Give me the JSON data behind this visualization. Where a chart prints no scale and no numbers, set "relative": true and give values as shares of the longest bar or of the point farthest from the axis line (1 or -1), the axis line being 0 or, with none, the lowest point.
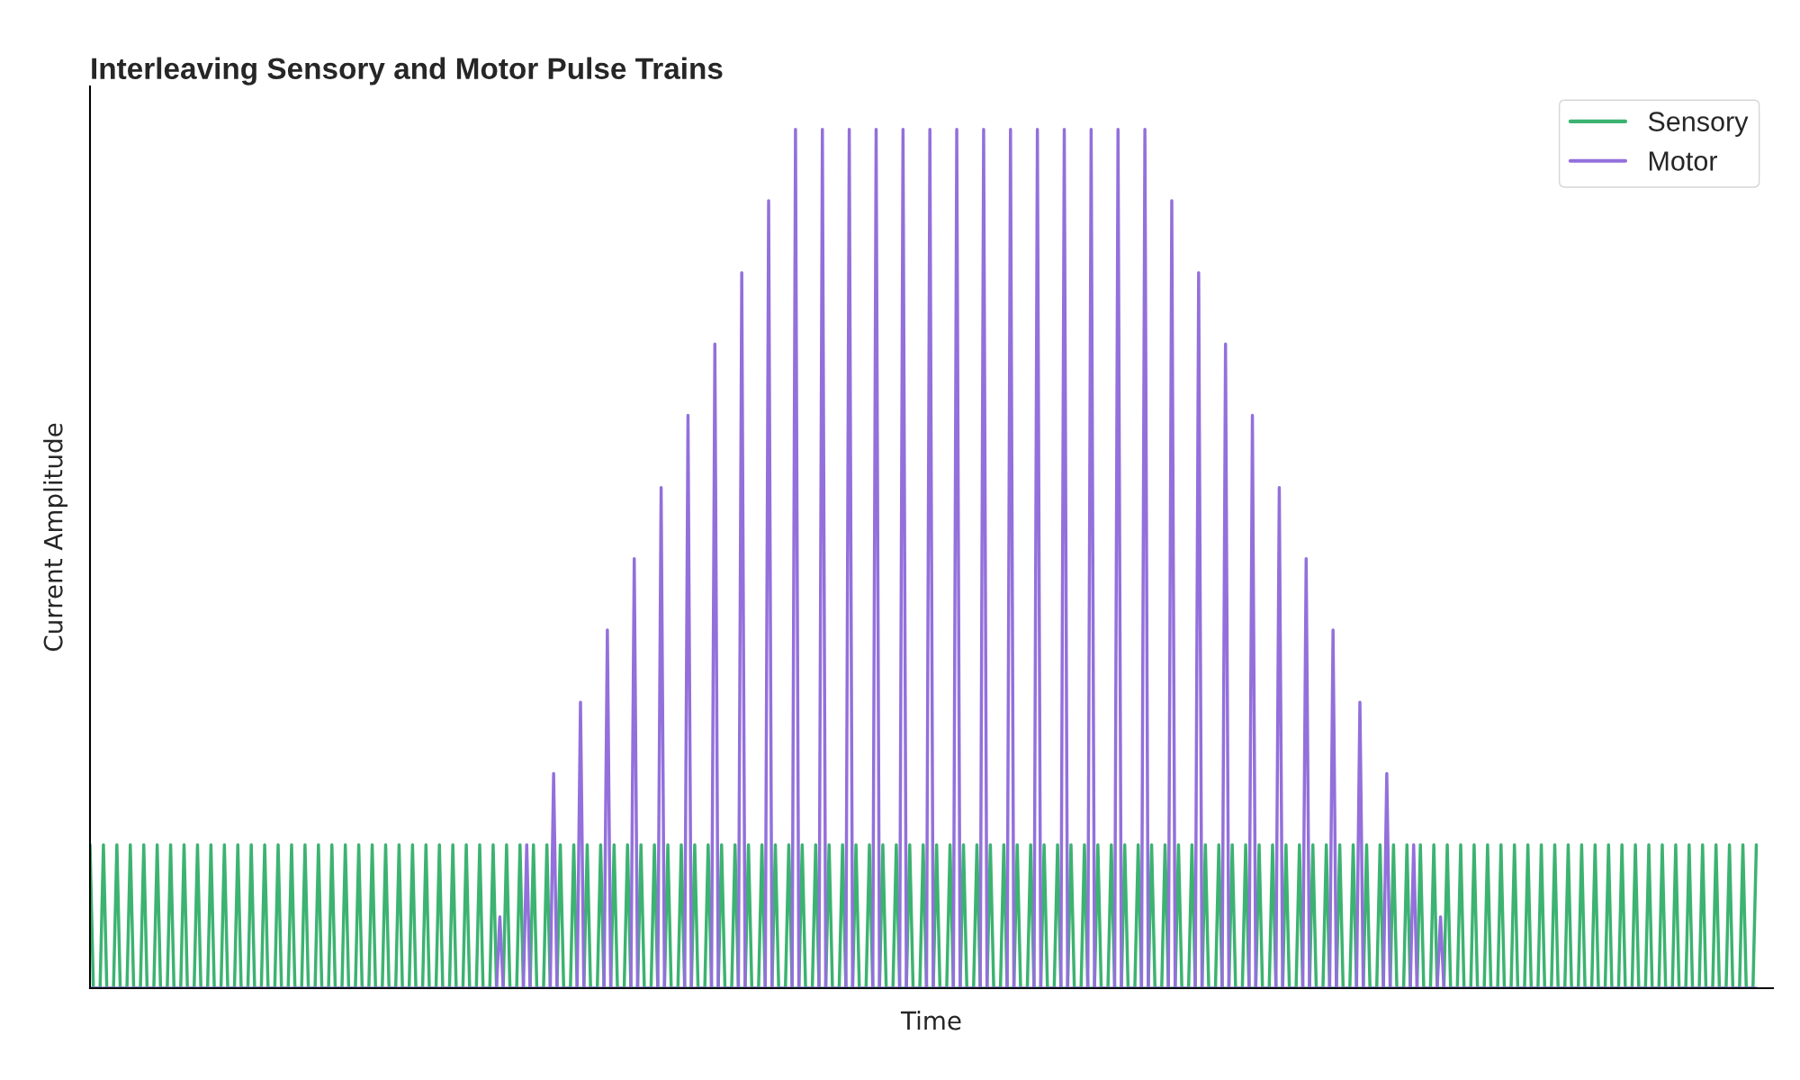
{
  "chart_data": {
    "type": "line",
    "title": "Interleaving Sensory and Motor Pulse Trains",
    "xlabel": "Time",
    "ylabel": "Current Amplitude",
    "relative": true,
    "tick_labels": false,
    "legend": "top right",
    "marker": "none",
    "line_style": "solid",
    "categories": [
      null,
      null,
      null,
      null,
      null,
      null,
      null,
      null,
      null,
      null,
      null,
      null,
      null,
      null,
      null,
      null,
      null,
      null,
      null,
      null,
      null,
      null,
      null,
      null,
      null,
      null,
      null,
      null,
      null,
      null,
      null,
      null,
      null,
      null,
      null,
      null,
      null,
      null,
      null,
      null,
      null,
      null,
      null,
      null,
      null,
      null,
      null,
      null,
      null,
      null,
      null,
      null,
      null,
      null,
      null,
      null,
      null,
      null,
      null,
      null,
      null,
      null,
      null,
      null,
      null,
      null,
      null,
      null,
      null,
      null,
      null,
      null,
      null,
      null,
      null,
      null,
      null,
      null,
      null,
      null,
      null,
      null,
      null,
      null,
      null,
      null,
      null,
      null,
      null,
      null,
      null,
      null,
      null,
      null,
      null,
      null,
      null,
      null,
      null,
      null,
      null,
      null,
      null,
      null,
      null,
      null,
      null,
      null,
      null,
      null,
      null,
      null,
      null,
      null,
      null,
      null,
      null,
      null,
      null,
      null,
      null,
      null,
      null,
      null,
      null,
      null,
      null,
      null,
      null,
      null,
      null,
      null,
      null,
      null,
      null,
      null,
      null,
      null,
      null,
      null,
      null,
      null,
      null,
      null,
      null,
      null,
      null,
      null,
      null,
      null,
      null,
      null,
      null,
      null,
      null,
      null,
      null,
      null,
      null,
      null,
      null,
      null,
      null,
      null,
      null,
      null,
      null,
      null,
      null,
      null,
      null,
      null,
      null,
      null,
      null,
      null,
      null,
      null,
      null,
      null,
      null,
      null,
      null,
      null,
      null,
      null,
      null,
      null,
      null,
      null,
      null,
      null,
      null,
      null,
      null,
      null,
      null,
      null,
      null,
      null,
      null,
      null,
      null,
      null,
      null,
      null,
      null,
      null,
      null,
      null,
      null,
      null,
      null,
      null,
      null,
      null,
      null,
      null,
      null,
      null,
      null,
      null,
      null,
      null,
      null,
      null,
      null,
      null,
      null,
      null,
      null,
      null,
      null,
      null,
      null,
      null,
      null,
      null,
      null,
      null,
      null,
      null,
      null,
      null,
      null,
      null,
      null,
      null,
      null,
      null,
      null,
      null,
      null,
      null,
      null,
      null,
      null,
      null,
      null,
      null,
      null,
      null,
      null,
      null,
      null,
      null,
      null,
      null,
      null,
      null,
      null,
      null,
      null,
      null,
      null,
      null,
      null,
      null,
      null,
      null,
      null,
      null,
      null,
      null,
      null,
      null,
      null,
      null,
      null,
      null,
      null,
      null,
      null,
      null,
      null,
      null,
      null,
      null,
      null,
      null,
      null,
      null,
      null,
      null,
      null,
      null,
      null,
      null,
      null,
      null,
      null,
      null,
      null,
      null,
      null,
      null,
      null,
      null,
      null,
      null,
      null,
      null,
      null,
      null,
      null,
      null,
      null,
      null,
      null,
      null,
      null,
      null,
      null,
      null,
      null,
      null,
      null,
      null,
      null,
      null,
      null,
      null,
      null,
      null,
      null,
      null,
      null,
      null,
      null,
      null,
      null,
      null,
      null,
      null,
      null,
      null,
      null,
      null,
      null,
      null,
      null,
      null,
      null,
      null,
      null,
      null,
      null,
      null,
      null,
      null,
      null,
      null,
      null,
      null,
      null,
      null,
      null,
      null,
      null,
      null,
      null,
      null,
      null,
      null,
      null,
      null,
      null,
      null,
      null,
      null,
      null,
      null,
      null,
      null,
      null,
      null,
      null,
      null,
      null,
      null,
      null,
      null,
      null,
      null,
      null,
      null,
      null,
      null,
      null,
      null,
      null,
      null,
      null,
      null,
      null,
      null,
      null,
      null,
      null,
      null,
      null,
      null,
      null,
      null,
      null,
      null,
      null,
      null,
      null,
      null,
      null,
      null,
      null,
      null,
      null,
      null,
      null,
      null,
      null,
      null,
      null,
      null,
      null,
      null,
      null,
      null,
      null,
      null,
      null,
      null,
      null,
      null,
      null,
      null,
      null,
      null,
      null,
      null,
      null,
      null,
      null,
      null,
      null,
      null,
      null,
      null,
      null,
      null,
      null,
      null,
      null,
      null,
      null,
      null,
      null,
      null,
      null,
      null,
      null,
      null,
      null,
      null,
      null,
      null,
      null,
      null,
      null,
      null,
      null,
      null,
      null,
      null,
      null,
      null,
      null,
      null,
      null
    ],
    "series": [
      {
        "name": "Sensory",
        "color": "#3cb371",
        "values": [
          0.167,
          0,
          0,
          0,
          0.167,
          0,
          0,
          0,
          0.167,
          0,
          0,
          0,
          0.167,
          0,
          0,
          0,
          0.167,
          0,
          0,
          0,
          0.167,
          0,
          0,
          0,
          0.167,
          0,
          0,
          0,
          0.167,
          0,
          0,
          0,
          0.167,
          0,
          0,
          0,
          0.167,
          0,
          0,
          0,
          0.167,
          0,
          0,
          0,
          0.167,
          0,
          0,
          0,
          0.167,
          0,
          0,
          0,
          0.167,
          0,
          0,
          0,
          0.167,
          0,
          0,
          0,
          0.167,
          0,
          0,
          0,
          0.167,
          0,
          0,
          0,
          0.167,
          0,
          0,
          0,
          0.167,
          0,
          0,
          0,
          0.167,
          0,
          0,
          0,
          0.167,
          0,
          0,
          0,
          0.167,
          0,
          0,
          0,
          0.167,
          0,
          0,
          0,
          0.167,
          0,
          0,
          0,
          0.167,
          0,
          0,
          0,
          0.167,
          0,
          0,
          0,
          0.167,
          0,
          0,
          0,
          0.167,
          0,
          0,
          0,
          0.167,
          0,
          0,
          0,
          0.167,
          0,
          0,
          0,
          0.167,
          0,
          0,
          0,
          0.167,
          0,
          0,
          0,
          0.167,
          0,
          0,
          0,
          0.167,
          0,
          0,
          0,
          0.167,
          0,
          0,
          0,
          0.167,
          0,
          0,
          0,
          0.167,
          0,
          0,
          0,
          0.167,
          0,
          0,
          0,
          0.167,
          0,
          0,
          0,
          0.167,
          0,
          0,
          0,
          0.167,
          0,
          0,
          0,
          0.167,
          0,
          0,
          0,
          0.167,
          0,
          0,
          0,
          0.167,
          0,
          0,
          0,
          0.167,
          0,
          0,
          0,
          0.167,
          0,
          0,
          0,
          0.167,
          0,
          0,
          0,
          0.167,
          0,
          0,
          0,
          0.167,
          0,
          0,
          0,
          0.167,
          0,
          0,
          0,
          0.167,
          0,
          0,
          0,
          0.167,
          0,
          0,
          0,
          0.167,
          0,
          0,
          0,
          0.167,
          0,
          0,
          0,
          0.167,
          0,
          0,
          0,
          0.167,
          0,
          0,
          0,
          0.167,
          0,
          0,
          0,
          0.167,
          0,
          0,
          0,
          0.167,
          0,
          0,
          0,
          0.167,
          0,
          0,
          0,
          0.167,
          0,
          0,
          0,
          0.167,
          0,
          0,
          0,
          0.167,
          0,
          0,
          0,
          0.167,
          0,
          0,
          0,
          0.167,
          0,
          0,
          0,
          0.167,
          0,
          0,
          0,
          0.167,
          0,
          0,
          0,
          0.167,
          0,
          0,
          0,
          0.167,
          0,
          0,
          0,
          0.167,
          0,
          0,
          0,
          0.167,
          0,
          0,
          0,
          0.167,
          0,
          0,
          0,
          0.167,
          0,
          0,
          0,
          0.167,
          0,
          0,
          0,
          0.167,
          0,
          0,
          0,
          0.167,
          0,
          0,
          0,
          0.167,
          0,
          0,
          0,
          0.167,
          0,
          0,
          0,
          0.167,
          0,
          0,
          0,
          0.167,
          0,
          0,
          0,
          0.167,
          0,
          0,
          0,
          0.167,
          0,
          0,
          0,
          0.167,
          0,
          0,
          0,
          0.167,
          0,
          0,
          0,
          0.167,
          0,
          0,
          0,
          0.167,
          0,
          0,
          0,
          0.167,
          0,
          0,
          0,
          0.167,
          0,
          0,
          0,
          0.167,
          0,
          0,
          0,
          0.167,
          0,
          0,
          0,
          0.167,
          0,
          0,
          0,
          0.167,
          0,
          0,
          0,
          0.167,
          0,
          0,
          0,
          0.167,
          0,
          0,
          0,
          0.167,
          0,
          0,
          0,
          0.167,
          0,
          0,
          0,
          0.167,
          0,
          0,
          0,
          0.167,
          0,
          0,
          0,
          0.167,
          0,
          0,
          0,
          0.167,
          0,
          0,
          0,
          0.167,
          0,
          0,
          0,
          0.167,
          0,
          0,
          0,
          0.167,
          0,
          0,
          0,
          0.167,
          0,
          0,
          0,
          0.167,
          0,
          0,
          0,
          0.167,
          0,
          0,
          0,
          0.167,
          0,
          0,
          0,
          0.167,
          0,
          0,
          0,
          0.167,
          0,
          0,
          0,
          0.167,
          0,
          0,
          0,
          0.167,
          0,
          0,
          0,
          0.167,
          0,
          0,
          0,
          0.167,
          0,
          0,
          0,
          0.167,
          0,
          0,
          0,
          0.167,
          0,
          0,
          0,
          0.167,
          0,
          0,
          0,
          0.167,
          0,
          0,
          0,
          0.167,
          0,
          0,
          0,
          0.167,
          0,
          0,
          0,
          0.167,
          0,
          0,
          0,
          0.167,
          0,
          0,
          0,
          0.167,
          0,
          0,
          0,
          0.167,
          0,
          0,
          0,
          0.167,
          0,
          0,
          0,
          0.167
        ]
      },
      {
        "name": "Motor",
        "color": "#9370db",
        "values": [
          0,
          0,
          0,
          0,
          0,
          0,
          0,
          0,
          0,
          0,
          0,
          0,
          0,
          0,
          0,
          0,
          0,
          0,
          0,
          0,
          0,
          0,
          0,
          0,
          0,
          0,
          0,
          0,
          0,
          0,
          0,
          0,
          0,
          0,
          0,
          0,
          0,
          0,
          0,
          0,
          0,
          0,
          0,
          0,
          0,
          0,
          0,
          0,
          0,
          0,
          0,
          0,
          0,
          0,
          0,
          0,
          0,
          0,
          0,
          0,
          0,
          0,
          0,
          0,
          0,
          0,
          0,
          0,
          0,
          0,
          0,
          0,
          0,
          0,
          0,
          0,
          0,
          0,
          0,
          0,
          0,
          0,
          0,
          0,
          0,
          0,
          0,
          0,
          0,
          0,
          0,
          0,
          0,
          0,
          0,
          0,
          0,
          0,
          0,
          0,
          0,
          0,
          0,
          0,
          0,
          0,
          0,
          0,
          0,
          0,
          0,
          0,
          0,
          0,
          0,
          0,
          0,
          0,
          0,
          0,
          0,
          0,
          0.083,
          0,
          0,
          0,
          0,
          0,
          0,
          0,
          0.167,
          0,
          0,
          0,
          0,
          0,
          0,
          0,
          0.25,
          0,
          0,
          0,
          0,
          0,
          0,
          0,
          0.333,
          0,
          0,
          0,
          0,
          0,
          0,
          0,
          0.417,
          0,
          0,
          0,
          0,
          0,
          0,
          0,
          0.5,
          0,
          0,
          0,
          0,
          0,
          0,
          0,
          0.583,
          0,
          0,
          0,
          0,
          0,
          0,
          0,
          0.667,
          0,
          0,
          0,
          0,
          0,
          0,
          0,
          0.75,
          0,
          0,
          0,
          0,
          0,
          0,
          0,
          0.833,
          0,
          0,
          0,
          0,
          0,
          0,
          0,
          0.917,
          0,
          0,
          0,
          0,
          0,
          0,
          0,
          1,
          0,
          0,
          0,
          0,
          0,
          0,
          0,
          1,
          0,
          0,
          0,
          0,
          0,
          0,
          0,
          1,
          0,
          0,
          0,
          0,
          0,
          0,
          0,
          1,
          0,
          0,
          0,
          0,
          0,
          0,
          0,
          1,
          0,
          0,
          0,
          0,
          0,
          0,
          0,
          1,
          0,
          0,
          0,
          0,
          0,
          0,
          0,
          1,
          0,
          0,
          0,
          0,
          0,
          0,
          0,
          1,
          0,
          0,
          0,
          0,
          0,
          0,
          0,
          1,
          0,
          0,
          0,
          0,
          0,
          0,
          0,
          1,
          0,
          0,
          0,
          0,
          0,
          0,
          0,
          1,
          0,
          0,
          0,
          0,
          0,
          0,
          0,
          1,
          0,
          0,
          0,
          0,
          0,
          0,
          0,
          1,
          0,
          0,
          0,
          0,
          0,
          0,
          0,
          1,
          0,
          0,
          0,
          0,
          0,
          0,
          0,
          0.917,
          0,
          0,
          0,
          0,
          0,
          0,
          0,
          0.833,
          0,
          0,
          0,
          0,
          0,
          0,
          0,
          0.75,
          0,
          0,
          0,
          0,
          0,
          0,
          0,
          0.667,
          0,
          0,
          0,
          0,
          0,
          0,
          0,
          0.583,
          0,
          0,
          0,
          0,
          0,
          0,
          0,
          0.5,
          0,
          0,
          0,
          0,
          0,
          0,
          0,
          0.417,
          0,
          0,
          0,
          0,
          0,
          0,
          0,
          0.333,
          0,
          0,
          0,
          0,
          0,
          0,
          0,
          0.25,
          0,
          0,
          0,
          0,
          0,
          0,
          0,
          0.167,
          0,
          0,
          0,
          0,
          0,
          0,
          0,
          0.083,
          0,
          0,
          0,
          0,
          0,
          0,
          0,
          0,
          0,
          0,
          0,
          0,
          0,
          0,
          0,
          0,
          0,
          0,
          0,
          0,
          0,
          0,
          0,
          0,
          0,
          0,
          0,
          0,
          0,
          0,
          0,
          0,
          0,
          0,
          0,
          0,
          0,
          0,
          0,
          0,
          0,
          0,
          0,
          0,
          0,
          0,
          0,
          0,
          0,
          0,
          0,
          0,
          0,
          0,
          0,
          0,
          0,
          0,
          0,
          0,
          0,
          0,
          0,
          0,
          0,
          0,
          0,
          0,
          0,
          0,
          0,
          0,
          0,
          0,
          0,
          0,
          0,
          0,
          0,
          0,
          0,
          0,
          0,
          0,
          0,
          0,
          0,
          0,
          0,
          0,
          0,
          0,
          0,
          0
        ]
      }
    ]
  }
}
